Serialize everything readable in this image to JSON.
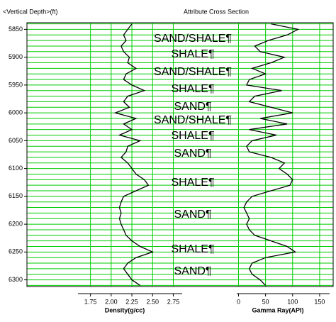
{
  "chart_data": {
    "type": "well-log",
    "title": "Attribute Cross Section",
    "ylabel": "<Vertical Depth>(ft)",
    "ylim": [
      5838,
      6312
    ],
    "yticks": [
      5850,
      5900,
      5950,
      6000,
      6050,
      6100,
      6150,
      6200,
      6250,
      6300
    ],
    "minor_yticks": [
      5840,
      5850,
      5860,
      5870,
      5880,
      5890,
      5900,
      5910,
      5920,
      5930,
      5940,
      5950,
      5960,
      5970,
      5980,
      5990,
      6000,
      6010,
      6020,
      6030,
      6040,
      6050,
      6060,
      6070,
      6080,
      6090,
      6100,
      6110,
      6120,
      6130,
      6140,
      6150,
      6160,
      6170,
      6180,
      6190,
      6200,
      6210,
      6220,
      6230,
      6240,
      6250,
      6260,
      6270,
      6280,
      6290,
      6300,
      6310
    ],
    "depth": [
      5840,
      5850,
      5860,
      5870,
      5880,
      5890,
      5900,
      5910,
      5920,
      5930,
      5940,
      5950,
      5960,
      5970,
      5980,
      5990,
      6000,
      6010,
      6020,
      6030,
      6040,
      6050,
      6060,
      6070,
      6080,
      6090,
      6100,
      6110,
      6120,
      6130,
      6140,
      6150,
      6160,
      6170,
      6180,
      6190,
      6200,
      6210,
      6220,
      6230,
      6240,
      6250,
      6260,
      6270,
      6280,
      6290,
      6300,
      6310
    ],
    "grid_color": "#00cc00",
    "series": [
      {
        "name": "Density(g/cc)",
        "color": "#000000",
        "xlim": [
          1.0,
          2.9
        ],
        "xticks": [
          {
            "value": 1.75,
            "label": "1.75"
          },
          {
            "value": 2,
            "label": "2.00"
          },
          {
            "value": 2.25,
            "label": "2.25"
          },
          {
            "value": 2.5,
            "label": "2.50"
          },
          {
            "value": 2.75,
            "label": "2.75"
          }
        ],
        "values": [
          2.25,
          2.2,
          2.15,
          2.18,
          2.12,
          2.15,
          2.22,
          2.2,
          2.3,
          2.18,
          2.15,
          2.25,
          2.4,
          2.2,
          2.15,
          2.22,
          2.05,
          2.3,
          2.15,
          2.25,
          2.1,
          2.35,
          2.2,
          2.18,
          2.12,
          2.2,
          2.25,
          2.3,
          2.4,
          2.45,
          2.3,
          2.15,
          2.12,
          2.1,
          2.12,
          2.1,
          2.12,
          2.15,
          2.18,
          2.25,
          2.35,
          2.5,
          2.3,
          2.2,
          2.15,
          2.2,
          2.25,
          2.35
        ]
      },
      {
        "name": "Gamma Ray(API)",
        "color": "#000000",
        "xlim": [
          -95,
          175
        ],
        "xticks": [
          0,
          50,
          100,
          150
        ],
        "values": [
          60,
          110,
          90,
          55,
          30,
          40,
          85,
          60,
          25,
          50,
          20,
          15,
          80,
          30,
          20,
          60,
          100,
          40,
          90,
          20,
          70,
          25,
          15,
          20,
          60,
          85,
          75,
          90,
          100,
          95,
          60,
          25,
          15,
          10,
          15,
          20,
          15,
          20,
          30,
          60,
          90,
          105,
          50,
          25,
          20,
          25,
          40,
          50
        ]
      }
    ],
    "annotations": [
      "SAND/SHALE¶",
      "SHALE¶",
      "SAND/SHALE¶",
      "SHALE¶",
      "SAND¶",
      "SAND/SHALE¶",
      "SHALE¶",
      "SAND¶",
      "SHALE¶",
      "SAND¶",
      "SHALE¶",
      "SAND¶"
    ]
  }
}
